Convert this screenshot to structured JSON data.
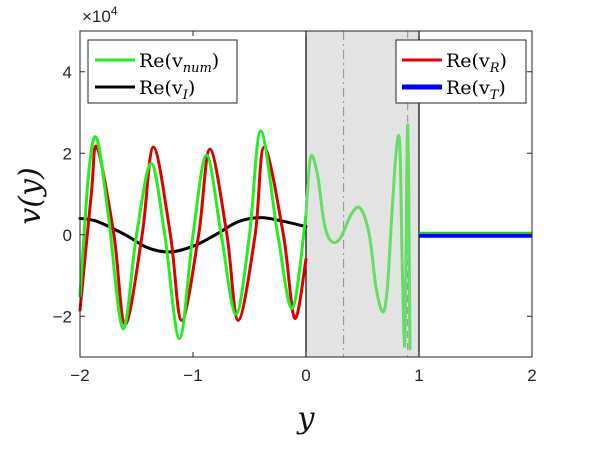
{
  "chart_data": {
    "type": "line",
    "xlabel": "y",
    "ylabel": "v(y)",
    "y_exponent_label": "×10",
    "y_exponent_value": "4",
    "xlim": [
      -2,
      2
    ],
    "ylim": [
      -3,
      5
    ],
    "y_scale_factor": 10000,
    "xticks": [
      "−2",
      "−1",
      "0",
      "1",
      "2"
    ],
    "xtick_values": [
      -2,
      -1,
      0,
      1,
      2
    ],
    "yticks": [
      "−2",
      "0",
      "2",
      "4"
    ],
    "ytick_values": [
      -2,
      0,
      2,
      4
    ],
    "grid": false,
    "shaded_region": {
      "x0": 0,
      "x1": 1,
      "color": "#e3e3e3"
    },
    "vertical_lines": [
      {
        "x": 0,
        "style": "solid",
        "color": "#000000"
      },
      {
        "x": 1,
        "style": "solid",
        "color": "#000000"
      },
      {
        "x": 0.333,
        "style": "dashdot",
        "color": "#8c8c8c"
      },
      {
        "x": 0.9,
        "style": "dashed",
        "color": "#8c8c8c"
      }
    ],
    "legend_left": {
      "placement": "top-left",
      "entries": [
        {
          "base": "Re(v",
          "sub": "num",
          "close": ")",
          "color": "#22ee22"
        },
        {
          "base": "Re(v",
          "sub": "I",
          "close": ")",
          "color": "#000000"
        }
      ]
    },
    "legend_right": {
      "placement": "top-right",
      "entries": [
        {
          "base": "Re(v",
          "sub": "R",
          "close": ")",
          "color": "#ee0000"
        },
        {
          "base": "Re(v",
          "sub": "T",
          "close": ")",
          "color": "#0000ff"
        }
      ]
    },
    "series": [
      {
        "key": "reflected",
        "color": "#dd0000",
        "x": [
          -2.0,
          -1.9,
          -1.85,
          -1.7,
          -1.6,
          -1.45,
          -1.35,
          -1.2,
          -1.1,
          -0.95,
          -0.85,
          -0.7,
          -0.6,
          -0.45,
          -0.37,
          -0.2,
          -0.1,
          0.0
        ],
        "y": [
          -1.85,
          1.0,
          2.15,
          0.0,
          -2.2,
          0.0,
          2.15,
          0.0,
          -2.1,
          0.0,
          2.1,
          0.0,
          -2.1,
          0.0,
          2.15,
          0.0,
          -2.05,
          -0.6
        ]
      },
      {
        "key": "incident",
        "color": "#000000",
        "x": [
          -2.0,
          -1.85,
          -1.6,
          -1.4,
          -1.2,
          -1.0,
          -0.8,
          -0.6,
          -0.4,
          -0.2,
          0.0
        ],
        "y": [
          0.4,
          0.33,
          0.0,
          -0.32,
          -0.42,
          -0.28,
          0.0,
          0.32,
          0.42,
          0.33,
          0.2
        ]
      },
      {
        "key": "numerical",
        "color": "#22ee22",
        "x": [
          -2.0,
          -1.92,
          -1.85,
          -1.75,
          -1.62,
          -1.5,
          -1.37,
          -1.25,
          -1.12,
          -1.0,
          -0.88,
          -0.75,
          -0.62,
          -0.5,
          -0.4,
          -0.25,
          -0.12,
          0.0
        ],
        "y": [
          -1.5,
          1.6,
          2.35,
          0.5,
          -2.3,
          0.0,
          1.75,
          0.0,
          -2.55,
          0.0,
          1.95,
          0.0,
          -1.95,
          0.0,
          2.55,
          0.0,
          -1.8,
          0.5
        ]
      },
      {
        "key": "numerical_absorbing",
        "color": "#66dd66",
        "x": [
          0.0,
          0.04,
          0.1,
          0.16,
          0.22,
          0.3,
          0.4,
          0.48,
          0.56,
          0.62,
          0.68,
          0.72,
          0.76,
          0.8,
          0.83,
          0.85,
          0.87,
          0.88,
          0.89,
          0.9,
          0.91,
          0.92
        ],
        "y": [
          0.5,
          1.9,
          1.5,
          0.3,
          -0.15,
          -0.1,
          0.5,
          0.65,
          0.0,
          -1.3,
          -1.9,
          -1.3,
          0.5,
          2.1,
          2.2,
          -0.5,
          -2.65,
          -2.0,
          1.0,
          2.7,
          0.8,
          -2.8
        ]
      },
      {
        "key": "transmitted",
        "color": "#0000ff",
        "x": [
          1.0,
          2.0
        ],
        "y": [
          0.0,
          0.0
        ]
      }
    ]
  }
}
